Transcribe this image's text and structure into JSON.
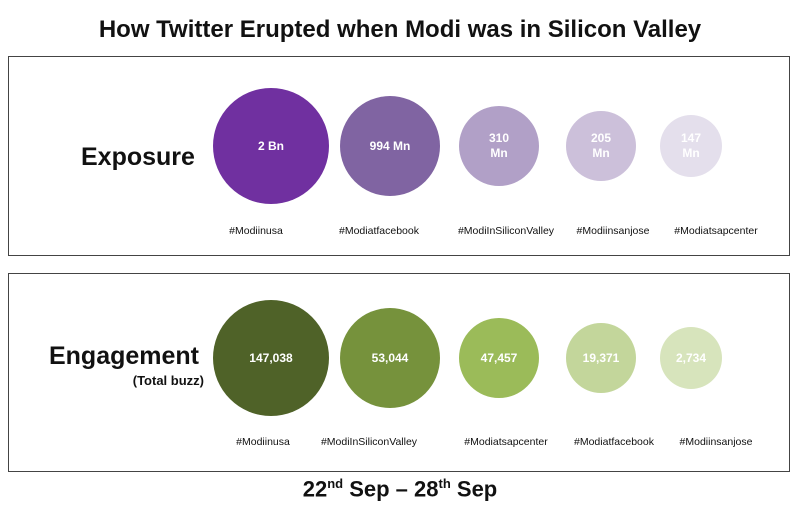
{
  "chart_data": [
    {
      "type": "bubble",
      "title": "How Twitter Erupted when Modi was in Silicon Valley",
      "panel_label": "Exposure",
      "categories": [
        "#Modiinusa",
        "#Modiatfacebook",
        "#ModiInSiliconValley",
        "#Modiinsanjose",
        "#Modiatsapcenter"
      ],
      "values": [
        2000000000,
        994000000,
        310000000,
        205000000,
        147000000
      ],
      "value_labels": [
        "2 Bn",
        "994 Mn",
        "310 Mn",
        "205 Mn",
        "147 Mn"
      ],
      "colors": [
        "#7030A0",
        "#8064A2",
        "#B1A0C7",
        "#CCC0DA",
        "#E4DFEC"
      ]
    },
    {
      "type": "bubble",
      "panel_label": "Engagement",
      "panel_sublabel": "(Total buzz)",
      "categories": [
        "#Modiinusa",
        "#ModiInSiliconValley",
        "#Modiatsapcenter",
        "#Modiatfacebook",
        "#Modiinsanjose"
      ],
      "values": [
        147038,
        53044,
        47457,
        19371,
        2734
      ],
      "value_labels": [
        "147,038",
        "53,044",
        "47,457",
        "19,371",
        "2,734"
      ],
      "colors": [
        "#4F6228",
        "#76923C",
        "#9BBB59",
        "#C3D69B",
        "#D7E4BC"
      ]
    }
  ],
  "footer": {
    "d1": "22",
    "s1": "nd",
    "m1": " Sep – 28",
    "s2": "th",
    "m2": " Sep"
  }
}
